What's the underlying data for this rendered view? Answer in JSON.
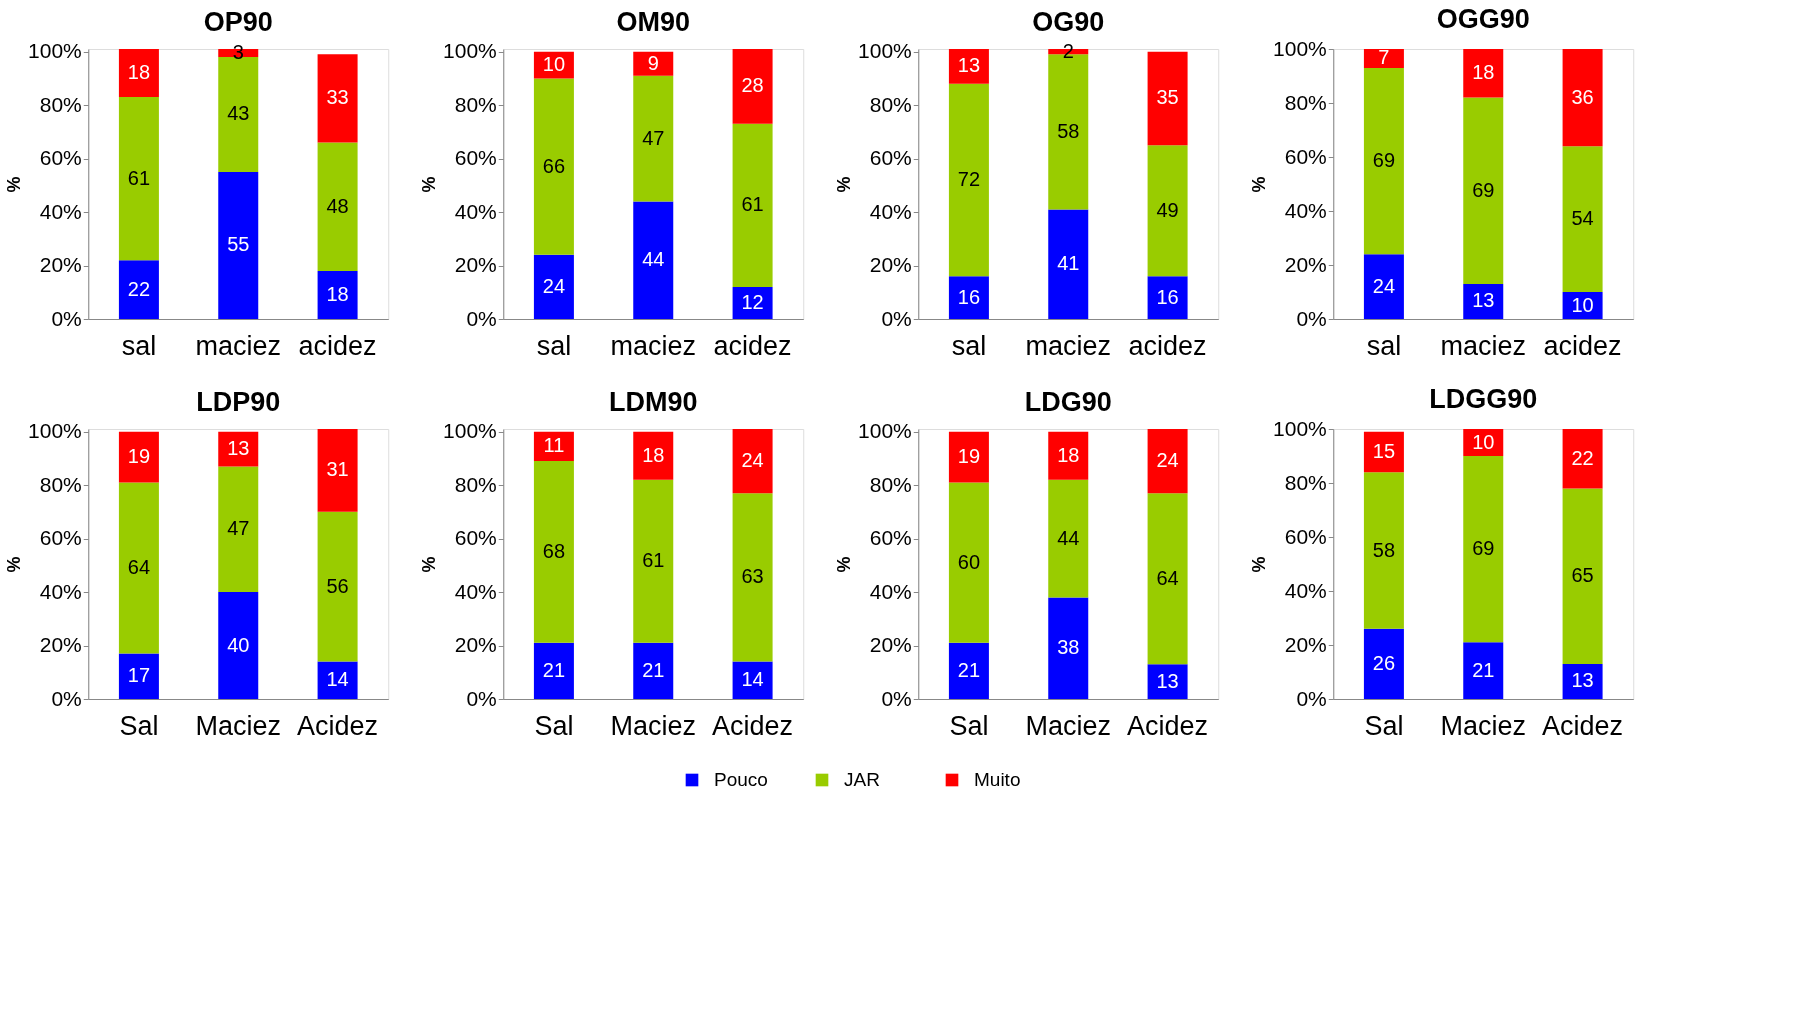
{
  "chart_data": [
    {
      "type": "bar",
      "stacked": true,
      "title": "OP90",
      "ylabel": "%",
      "categories": [
        "sal",
        "maciez",
        "acidez"
      ],
      "ylim": [
        0,
        101
      ],
      "yticks": [
        {
          "value": 0,
          "label": "0%"
        },
        {
          "value": 20,
          "label": "20%"
        },
        {
          "value": 40,
          "label": "40%"
        },
        {
          "value": 60,
          "label": "60%"
        },
        {
          "value": 80,
          "label": "80%"
        },
        {
          "value": 100,
          "label": "100%"
        }
      ],
      "data_labels": true,
      "grid": false,
      "series": [
        {
          "color": "#0000ff",
          "values": [
            22,
            55,
            18
          ]
        },
        {
          "color": "#99cc00",
          "values": [
            61,
            43,
            48
          ]
        },
        {
          "color": "#ff0000",
          "values": [
            18,
            3,
            33
          ]
        }
      ]
    },
    {
      "type": "bar",
      "stacked": true,
      "title": "OM90",
      "ylabel": "%",
      "categories": [
        "sal",
        "maciez",
        "acidez"
      ],
      "ylim": [
        0,
        101
      ],
      "yticks": [
        {
          "value": 0,
          "label": "0%"
        },
        {
          "value": 20,
          "label": "20%"
        },
        {
          "value": 40,
          "label": "40%"
        },
        {
          "value": 60,
          "label": "60%"
        },
        {
          "value": 80,
          "label": "80%"
        },
        {
          "value": 100,
          "label": "100%"
        }
      ],
      "data_labels": true,
      "grid": false,
      "series": [
        {
          "color": "#0000ff",
          "values": [
            24,
            44,
            12
          ]
        },
        {
          "color": "#99cc00",
          "values": [
            66,
            47,
            61
          ]
        },
        {
          "color": "#ff0000",
          "values": [
            10,
            9,
            28
          ]
        }
      ]
    },
    {
      "type": "bar",
      "stacked": true,
      "title": "OG90",
      "ylabel": "%",
      "categories": [
        "sal",
        "maciez",
        "acidez"
      ],
      "ylim": [
        0,
        101
      ],
      "yticks": [
        {
          "value": 0,
          "label": "0%"
        },
        {
          "value": 20,
          "label": "20%"
        },
        {
          "value": 40,
          "label": "40%"
        },
        {
          "value": 60,
          "label": "60%"
        },
        {
          "value": 80,
          "label": "80%"
        },
        {
          "value": 100,
          "label": "100%"
        }
      ],
      "data_labels": true,
      "grid": false,
      "series": [
        {
          "color": "#0000ff",
          "values": [
            16,
            41,
            16
          ]
        },
        {
          "color": "#99cc00",
          "values": [
            72,
            58,
            49
          ]
        },
        {
          "color": "#ff0000",
          "values": [
            13,
            2,
            35
          ]
        }
      ]
    },
    {
      "type": "bar",
      "stacked": true,
      "title": "OGG90",
      "ylabel": "%",
      "categories": [
        "sal",
        "maciez",
        "acidez"
      ],
      "ylim": [
        0,
        100
      ],
      "yticks": [
        {
          "value": 0,
          "label": "0%"
        },
        {
          "value": 20,
          "label": "20%"
        },
        {
          "value": 40,
          "label": "40%"
        },
        {
          "value": 60,
          "label": "60%"
        },
        {
          "value": 80,
          "label": "80%"
        },
        {
          "value": 100,
          "label": "100%"
        }
      ],
      "data_labels": true,
      "grid": false,
      "series": [
        {
          "color": "#0000ff",
          "values": [
            24,
            13,
            10
          ]
        },
        {
          "color": "#99cc00",
          "values": [
            69,
            69,
            54
          ]
        },
        {
          "color": "#ff0000",
          "values": [
            7,
            18,
            36
          ]
        }
      ]
    },
    {
      "type": "bar",
      "stacked": true,
      "title": "LDP90",
      "ylabel": "%",
      "categories": [
        "Sal",
        "Maciez",
        "Acidez"
      ],
      "ylim": [
        0,
        101
      ],
      "yticks": [
        {
          "value": 0,
          "label": "0%"
        },
        {
          "value": 20,
          "label": "20%"
        },
        {
          "value": 40,
          "label": "40%"
        },
        {
          "value": 60,
          "label": "60%"
        },
        {
          "value": 80,
          "label": "80%"
        },
        {
          "value": 100,
          "label": "100%"
        }
      ],
      "data_labels": true,
      "grid": false,
      "series": [
        {
          "color": "#0000ff",
          "values": [
            17,
            40,
            14
          ]
        },
        {
          "color": "#99cc00",
          "values": [
            64,
            47,
            56
          ]
        },
        {
          "color": "#ff0000",
          "values": [
            19,
            13,
            31
          ]
        }
      ]
    },
    {
      "type": "bar",
      "stacked": true,
      "title": "LDM90",
      "ylabel": "%",
      "categories": [
        "Sal",
        "Maciez",
        "Acidez"
      ],
      "ylim": [
        0,
        101
      ],
      "yticks": [
        {
          "value": 0,
          "label": "0%"
        },
        {
          "value": 20,
          "label": "20%"
        },
        {
          "value": 40,
          "label": "40%"
        },
        {
          "value": 60,
          "label": "60%"
        },
        {
          "value": 80,
          "label": "80%"
        },
        {
          "value": 100,
          "label": "100%"
        }
      ],
      "data_labels": true,
      "grid": false,
      "series": [
        {
          "color": "#0000ff",
          "values": [
            21,
            21,
            14
          ]
        },
        {
          "color": "#99cc00",
          "values": [
            68,
            61,
            63
          ]
        },
        {
          "color": "#ff0000",
          "values": [
            11,
            18,
            24
          ]
        }
      ]
    },
    {
      "type": "bar",
      "stacked": true,
      "title": "LDG90",
      "ylabel": "%",
      "categories": [
        "Sal",
        "Maciez",
        "Acidez"
      ],
      "ylim": [
        0,
        101
      ],
      "yticks": [
        {
          "value": 0,
          "label": "0%"
        },
        {
          "value": 20,
          "label": "20%"
        },
        {
          "value": 40,
          "label": "40%"
        },
        {
          "value": 60,
          "label": "60%"
        },
        {
          "value": 80,
          "label": "80%"
        },
        {
          "value": 100,
          "label": "100%"
        }
      ],
      "data_labels": true,
      "grid": false,
      "series": [
        {
          "color": "#0000ff",
          "values": [
            21,
            38,
            13
          ]
        },
        {
          "color": "#99cc00",
          "values": [
            60,
            44,
            64
          ]
        },
        {
          "color": "#ff0000",
          "values": [
            19,
            18,
            24
          ]
        }
      ]
    },
    {
      "type": "bar",
      "stacked": true,
      "title": "LDGG90",
      "ylabel": "%",
      "categories": [
        "Sal",
        "Maciez",
        "Acidez"
      ],
      "ylim": [
        0,
        100
      ],
      "yticks": [
        {
          "value": 0,
          "label": "0%"
        },
        {
          "value": 20,
          "label": "20%"
        },
        {
          "value": 40,
          "label": "40%"
        },
        {
          "value": 60,
          "label": "60%"
        },
        {
          "value": 80,
          "label": "80%"
        },
        {
          "value": 100,
          "label": "100%"
        }
      ],
      "data_labels": true,
      "grid": false,
      "legend": "bottom",
      "series": [
        {
          "name": "Pouco",
          "color": "#0000ff",
          "values": [
            26,
            21,
            13
          ]
        },
        {
          "name": "JAR",
          "color": "#99cc00",
          "values": [
            58,
            69,
            65
          ]
        },
        {
          "name": "Muito",
          "color": "#ff0000",
          "values": [
            15,
            10,
            22
          ]
        }
      ]
    }
  ]
}
